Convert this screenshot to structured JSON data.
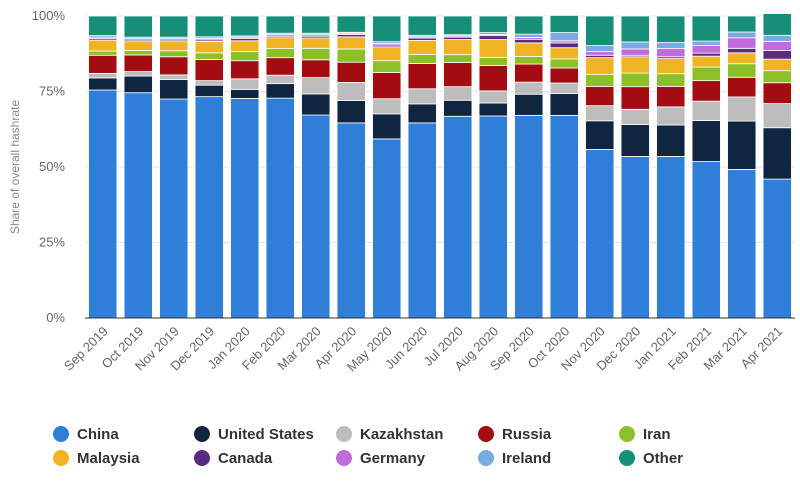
{
  "chart_data": {
    "type": "bar",
    "stacked": true,
    "ylabel": "Share of overall hashrate",
    "ylim": [
      0,
      100
    ],
    "yticks": [
      "0%",
      "25%",
      "50%",
      "75%",
      "100%"
    ],
    "ytick_values": [
      0,
      25,
      50,
      75,
      100
    ],
    "grid": true,
    "legend_position": "bottom",
    "categories": [
      "Sep 2019",
      "Oct 2019",
      "Nov 2019",
      "Dec 2019",
      "Jan 2020",
      "Feb 2020",
      "Mar 2020",
      "Apr 2020",
      "May 2020",
      "Jun 2020",
      "Jul 2020",
      "Aug 2020",
      "Sep 2020",
      "Oct 2020",
      "Nov 2020",
      "Dec 2020",
      "Jan 2021",
      "Feb 2021",
      "Mar 2021",
      "Apr 2021"
    ],
    "series": [
      {
        "name": "China",
        "color": "#2f7ed8",
        "values": [
          75.5,
          74.6,
          72.5,
          73.3,
          72.7,
          72.8,
          67.2,
          64.6,
          59.3,
          64.6,
          66.8,
          66.9,
          67.1,
          67.1,
          55.8,
          53.5,
          53.5,
          51.8,
          49.2,
          46.0
        ]
      },
      {
        "name": "United States",
        "color": "#0f2540",
        "values": [
          4.0,
          5.5,
          6.5,
          3.8,
          3.0,
          4.8,
          7.0,
          7.4,
          8.3,
          6.3,
          5.3,
          4.3,
          7.0,
          7.2,
          9.5,
          10.6,
          10.4,
          13.6,
          16.0,
          17.0
        ]
      },
      {
        "name": "Kazakhstan",
        "color": "#bdbdbd",
        "values": [
          1.5,
          1.5,
          1.5,
          1.5,
          3.5,
          2.8,
          5.4,
          6.0,
          5.0,
          5.0,
          4.5,
          4.0,
          4.0,
          3.5,
          5.0,
          5.0,
          6.0,
          6.4,
          8.0,
          8.0
        ]
      },
      {
        "name": "Russia",
        "color": "#a30d12",
        "values": [
          6.0,
          5.5,
          6.0,
          7.0,
          6.0,
          5.8,
          5.9,
          6.7,
          8.7,
          8.4,
          8.0,
          8.4,
          6.0,
          5.0,
          6.4,
          7.5,
          6.8,
          6.8,
          6.5,
          6.9
        ]
      },
      {
        "name": "Iran",
        "color": "#8bc126",
        "values": [
          1.4,
          1.5,
          2.0,
          2.2,
          3.0,
          3.0,
          3.8,
          4.4,
          3.9,
          3.0,
          2.6,
          2.7,
          2.5,
          3.0,
          4.0,
          4.5,
          4.2,
          4.5,
          4.5,
          4.0
        ]
      },
      {
        "name": "Malaysia",
        "color": "#f0b323",
        "values": [
          3.6,
          2.9,
          3.0,
          3.8,
          3.6,
          3.6,
          3.4,
          4.0,
          4.6,
          4.6,
          5.0,
          5.9,
          4.5,
          3.7,
          5.5,
          5.4,
          5.0,
          3.6,
          3.6,
          3.8
        ]
      },
      {
        "name": "Canada",
        "color": "#5b2a82",
        "values": [
          0.5,
          0.5,
          0.5,
          0.5,
          0.8,
          0.5,
          0.6,
          0.8,
          0.6,
          0.8,
          0.8,
          1.3,
          1.2,
          1.6,
          0.8,
          0.5,
          0.6,
          1.0,
          1.5,
          2.9
        ]
      },
      {
        "name": "Germany",
        "color": "#c26bdc",
        "values": [
          0.5,
          0.5,
          0.5,
          0.5,
          0.4,
          0.5,
          0.5,
          0.4,
          0.5,
          0.4,
          0.4,
          0.4,
          0.6,
          0.7,
          1.2,
          2.1,
          2.7,
          2.5,
          3.5,
          3.0
        ]
      },
      {
        "name": "Ireland",
        "color": "#7aa9e3",
        "values": [
          0.5,
          0.5,
          0.5,
          0.5,
          0.4,
          0.5,
          0.5,
          0.3,
          0.6,
          0.5,
          0.4,
          0.6,
          1.1,
          2.7,
          2.0,
          2.3,
          2.0,
          1.5,
          1.9,
          2.0
        ]
      },
      {
        "name": "Other",
        "color": "#168f78",
        "values": [
          6.5,
          7.0,
          7.0,
          6.9,
          6.6,
          5.7,
          5.7,
          5.4,
          8.5,
          6.4,
          6.2,
          5.5,
          6.0,
          5.7,
          9.8,
          8.6,
          8.8,
          8.3,
          5.3,
          7.2
        ]
      }
    ]
  }
}
